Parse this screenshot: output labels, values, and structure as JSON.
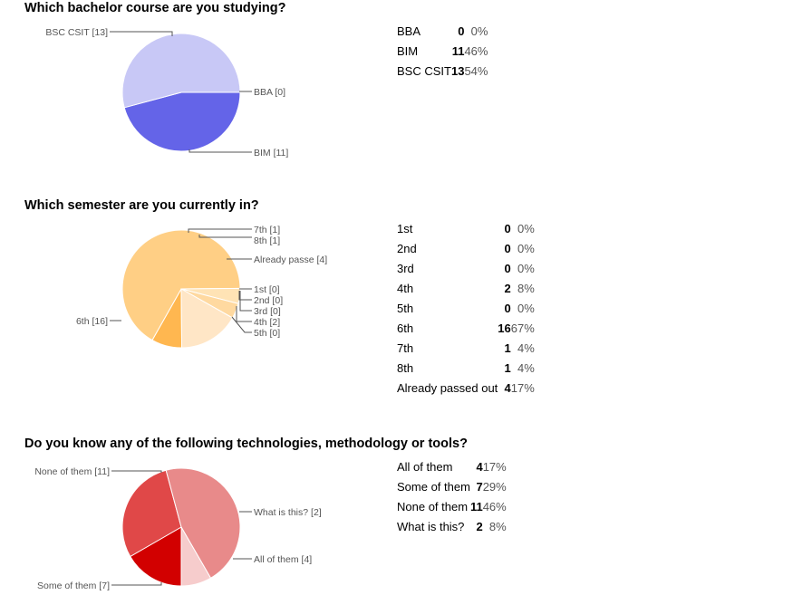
{
  "chart_data": [
    {
      "type": "pie",
      "title": "Which bachelor course are you studying?",
      "categories": [
        "BBA",
        "BIM",
        "BSC CSIT"
      ],
      "values": [
        0,
        11,
        13
      ],
      "percents": [
        "0%",
        "46%",
        "54%"
      ],
      "slice_labels": [
        "BBA [0]",
        "BIM [11]",
        "BSC CSIT [13]"
      ],
      "colors": [
        "#3b3bd6",
        "#6464e8",
        "#c8c8f6"
      ]
    },
    {
      "type": "pie",
      "title": "Which semester are you currently in?",
      "categories": [
        "1st",
        "2nd",
        "3rd",
        "4th",
        "5th",
        "6th",
        "7th",
        "8th",
        "Already passed out"
      ],
      "values": [
        0,
        0,
        0,
        2,
        0,
        16,
        1,
        1,
        4
      ],
      "percents": [
        "0%",
        "0%",
        "0%",
        "8%",
        "0%",
        "67%",
        "4%",
        "4%",
        "17%"
      ],
      "slice_labels": [
        "1st [0]",
        "2nd [0]",
        "3rd [0]",
        "4th [2]",
        "5th [0]",
        "6th [16]",
        "7th [1]",
        "8th [1]",
        "Already passe [4]"
      ],
      "colors": [
        "#ffb35a",
        "#ffb35a",
        "#ffb35a",
        "#ffb750",
        "#ffb35a",
        "#ffcf85",
        "#ffe3b5",
        "#ffd9a0",
        "#ffe6c6"
      ]
    },
    {
      "type": "pie",
      "title": "Do you know any of the following technologies, methodology or tools?",
      "categories": [
        "All of them",
        "Some of them",
        "None of them",
        "What is this?"
      ],
      "values": [
        4,
        7,
        11,
        2
      ],
      "percents": [
        "17%",
        "29%",
        "46%",
        "8%"
      ],
      "slice_labels": [
        "All of them [4]",
        "Some of them [7]",
        "None of them [11]",
        "What is this? [2]"
      ],
      "colors": [
        "#d20000",
        "#e04848",
        "#e88a8a",
        "#f6cccc"
      ]
    }
  ]
}
